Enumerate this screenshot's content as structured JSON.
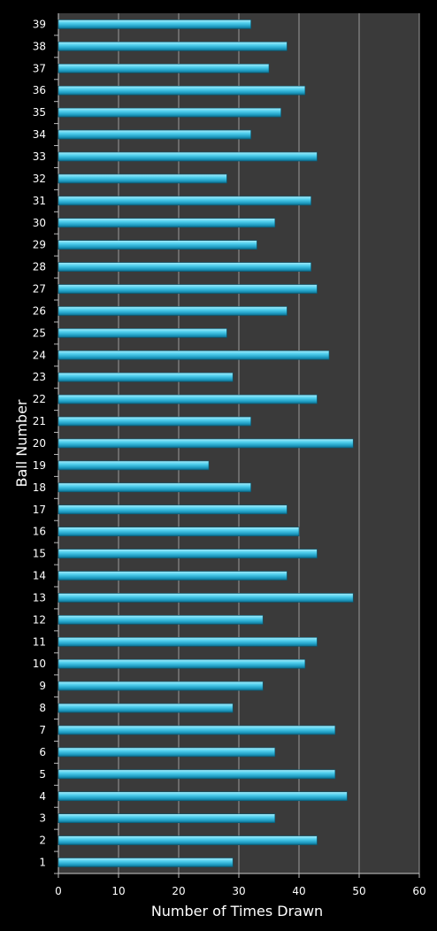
{
  "chart_data": {
    "type": "bar",
    "orientation": "horizontal",
    "title": "",
    "xlabel": "Number of Times Drawn",
    "ylabel": "Ball Number",
    "xlim": [
      0,
      60
    ],
    "x_ticks": [
      0,
      10,
      20,
      30,
      40,
      50,
      60
    ],
    "grid": "vertical lines",
    "legend": "none",
    "bar_color": "#3ec6e6",
    "plot_background": "#3a3a3a",
    "page_background": "#000000",
    "categories": [
      "1",
      "2",
      "3",
      "4",
      "5",
      "6",
      "7",
      "8",
      "9",
      "10",
      "11",
      "12",
      "13",
      "14",
      "15",
      "16",
      "17",
      "18",
      "19",
      "20",
      "21",
      "22",
      "23",
      "24",
      "25",
      "26",
      "27",
      "28",
      "29",
      "30",
      "31",
      "32",
      "33",
      "34",
      "35",
      "36",
      "37",
      "38",
      "39"
    ],
    "values": [
      29,
      43,
      36,
      48,
      46,
      36,
      46,
      29,
      34,
      41,
      43,
      34,
      49,
      38,
      43,
      40,
      38,
      32,
      25,
      49,
      32,
      43,
      29,
      45,
      28,
      38,
      43,
      42,
      33,
      36,
      42,
      28,
      43,
      32,
      37,
      41,
      35,
      38,
      32
    ]
  }
}
